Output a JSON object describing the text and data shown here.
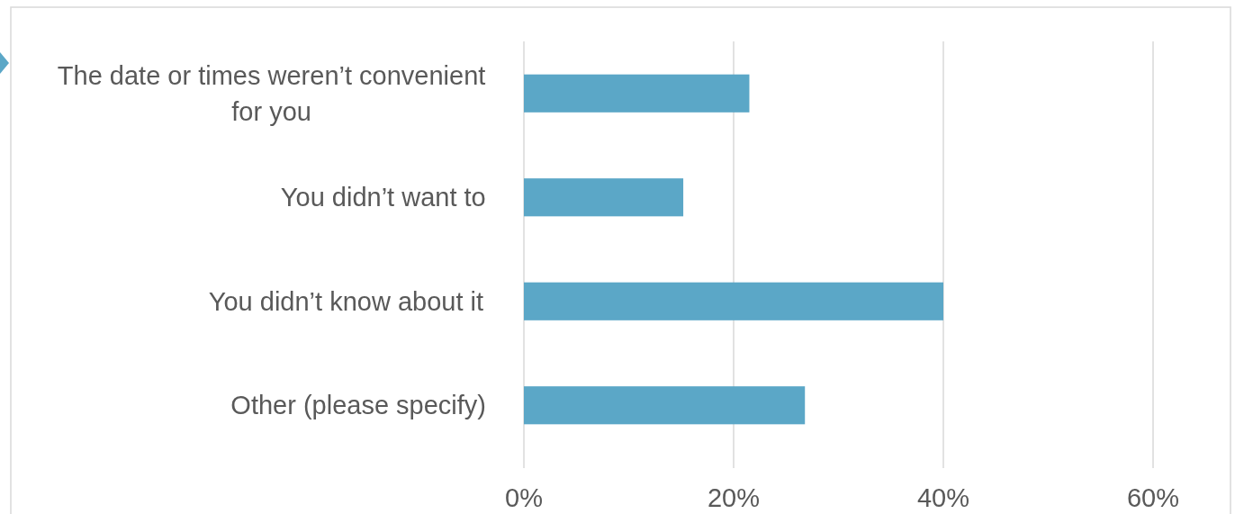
{
  "chart_data": {
    "type": "bar",
    "orientation": "horizontal",
    "categories": [
      "The date or times weren’t convenient for you",
      "You didn’t want to",
      "You didn’t know about it",
      "Other (please specify)"
    ],
    "values": [
      21.5,
      15.2,
      40,
      26.8
    ],
    "color": "#5ba7c7",
    "xlim": [
      0,
      60
    ],
    "xticks": [
      {
        "value": 0,
        "label": "0%"
      },
      {
        "value": 20,
        "label": "20%"
      },
      {
        "value": 40,
        "label": "40%"
      },
      {
        "value": 60,
        "label": "60%"
      }
    ],
    "grid": "x"
  }
}
